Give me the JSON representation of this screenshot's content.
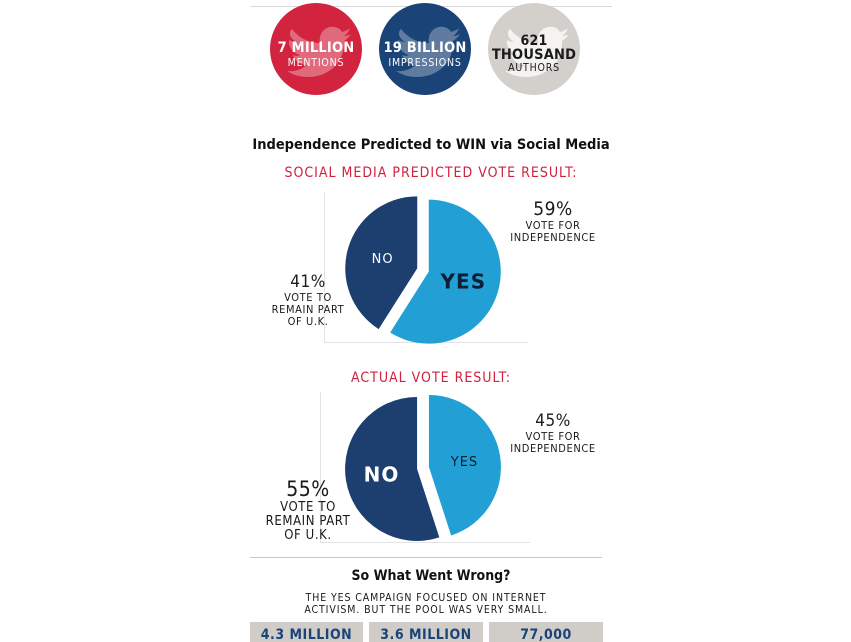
{
  "colors": {
    "red": "#d2233f",
    "navy": "#1a4478",
    "grey": "#d3d0cc",
    "no_slice": "#1c3f70",
    "yes_slice": "#22a0d6",
    "heading_red": "#d0213f"
  },
  "stats": [
    {
      "big": "7 MILLION",
      "small": "MENTIONS",
      "icon": "twitter-bird-icon"
    },
    {
      "big": "19 BILLION",
      "small": "IMPRESSIONS",
      "icon": "twitter-bird-icon"
    },
    {
      "big_line1": "621",
      "big_line2": "THOUSAND",
      "small": "AUTHORS",
      "icon": "twitter-bird-icon"
    }
  ],
  "headline": "Independence Predicted to WIN via Social Media",
  "chart_data": [
    {
      "type": "pie",
      "title": "SOCIAL MEDIA PREDICTED VOTE RESULT:",
      "slices": [
        {
          "label": "YES",
          "value": 59,
          "pct_text": "59%",
          "description": [
            "VOTE FOR",
            "INDEPENDENCE"
          ]
        },
        {
          "label": "NO",
          "value": 41,
          "pct_text": "41%",
          "description": [
            "VOTE TO",
            "REMAIN PART",
            "OF U.K."
          ]
        }
      ]
    },
    {
      "type": "pie",
      "title": "ACTUAL VOTE RESULT:",
      "slices": [
        {
          "label": "YES",
          "value": 45,
          "pct_text": "45%",
          "description": [
            "VOTE FOR",
            "INDEPENDENCE"
          ]
        },
        {
          "label": "NO",
          "value": 55,
          "pct_text": "55%",
          "description": [
            "VOTE TO",
            "REMAIN PART",
            "OF U.K."
          ]
        }
      ]
    }
  ],
  "section": {
    "title": "So What Went Wrong?",
    "text_line1": "THE YES CAMPAIGN FOCUSED ON INTERNET",
    "text_line2": "ACTIVISM. BUT THE POOL WAS VERY SMALL."
  },
  "bottom_stats": [
    "4.3 MILLION",
    "3.6 MILLION",
    "77,000"
  ]
}
